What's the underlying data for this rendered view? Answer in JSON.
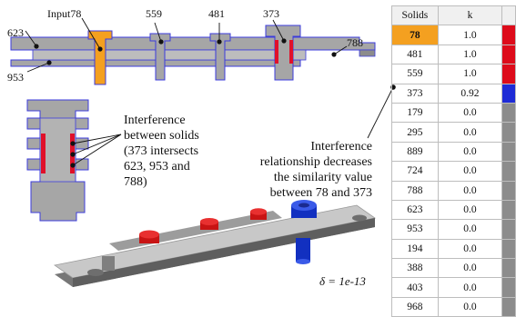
{
  "labels": {
    "input78": "Input78",
    "p559": "559",
    "p481": "481",
    "p373": "373",
    "p623": "623",
    "p953": "953",
    "p788": "788"
  },
  "interference_note": [
    "Interference",
    "between solids",
    "(373 intersects",
    "623, 953 and",
    "788)"
  ],
  "relationship_note": [
    "Interference",
    "relationship decreases",
    "the similarity value",
    "between 78 and 373"
  ],
  "delta": "δ = 1e-13",
  "colors": {
    "input_solid": "#f4a020",
    "plate": "#a6a6a6",
    "outline": "#3c3cdc",
    "interference": "#e0102a",
    "bar_high": "#dd0b1a",
    "bar_mid": "#1e2bd6",
    "bar_low": "#8c8c8c"
  },
  "table": {
    "headers": [
      "Solids",
      "k"
    ],
    "rows": [
      {
        "solid": "78",
        "k": "1.0",
        "bar": "#dd0b1a",
        "highlight": true
      },
      {
        "solid": "481",
        "k": "1.0",
        "bar": "#dd0b1a",
        "highlight": false
      },
      {
        "solid": "559",
        "k": "1.0",
        "bar": "#dd0b1a",
        "highlight": false
      },
      {
        "solid": "373",
        "k": "0.92",
        "bar": "#1e2bd6",
        "highlight": false
      },
      {
        "solid": "179",
        "k": "0.0",
        "bar": "#8c8c8c",
        "highlight": false
      },
      {
        "solid": "295",
        "k": "0.0",
        "bar": "#8c8c8c",
        "highlight": false
      },
      {
        "solid": "889",
        "k": "0.0",
        "bar": "#8c8c8c",
        "highlight": false
      },
      {
        "solid": "724",
        "k": "0.0",
        "bar": "#8c8c8c",
        "highlight": false
      },
      {
        "solid": "788",
        "k": "0.0",
        "bar": "#8c8c8c",
        "highlight": false
      },
      {
        "solid": "623",
        "k": "0.0",
        "bar": "#8c8c8c",
        "highlight": false
      },
      {
        "solid": "953",
        "k": "0.0",
        "bar": "#8c8c8c",
        "highlight": false
      },
      {
        "solid": "194",
        "k": "0.0",
        "bar": "#8c8c8c",
        "highlight": false
      },
      {
        "solid": "388",
        "k": "0.0",
        "bar": "#8c8c8c",
        "highlight": false
      },
      {
        "solid": "403",
        "k": "0.0",
        "bar": "#8c8c8c",
        "highlight": false
      },
      {
        "solid": "968",
        "k": "0.0",
        "bar": "#8c8c8c",
        "highlight": false
      }
    ]
  }
}
